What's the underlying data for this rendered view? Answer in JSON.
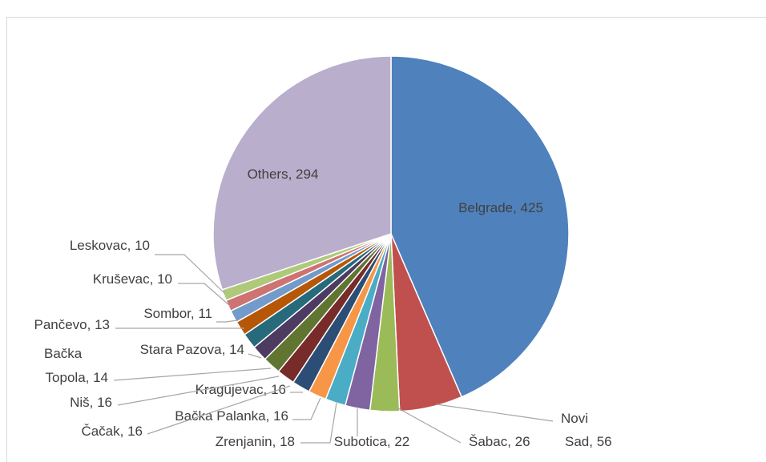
{
  "chart_data": {
    "type": "pie",
    "categories": [
      "Belgrade",
      "Novi Sad",
      "Šabac",
      "Subotica",
      "Zrenjanin",
      "Bačka Palanka",
      "Kragujevac",
      "Čačak",
      "Niš",
      "Bačka Topola",
      "Stara Pazova",
      "Pančevo",
      "Sombor",
      "Kruševac",
      "Leskovac",
      "Others"
    ],
    "values": [
      425,
      56,
      26,
      22,
      18,
      16,
      16,
      16,
      16,
      14,
      14,
      13,
      11,
      10,
      10,
      294
    ],
    "value_labels": [
      "Belgrade, 425",
      "Novi\nSad, 56",
      "Šabac, 26",
      "Subotica, 22",
      "Zrenjanin, 18",
      "Bačka Palanka, 16",
      "Kragujevac, 16",
      "Čačak, 16",
      "Niš, 16",
      "Bačka\nTopola, 14",
      "Stara Pazova, 14",
      "Pančevo, 13",
      "Sombor, 11",
      "Kruševac, 10",
      "Leskovac, 10",
      "Others, 294"
    ],
    "colors": [
      "#4f81bd",
      "#c0504d",
      "#9bbb59",
      "#8064a2",
      "#4bacc6",
      "#f79646",
      "#2c4d75",
      "#772c2a",
      "#5f7530",
      "#4d3b62",
      "#276a7c",
      "#b65708",
      "#729aca",
      "#cd7371",
      "#afc97a",
      "#b9aecb"
    ]
  }
}
